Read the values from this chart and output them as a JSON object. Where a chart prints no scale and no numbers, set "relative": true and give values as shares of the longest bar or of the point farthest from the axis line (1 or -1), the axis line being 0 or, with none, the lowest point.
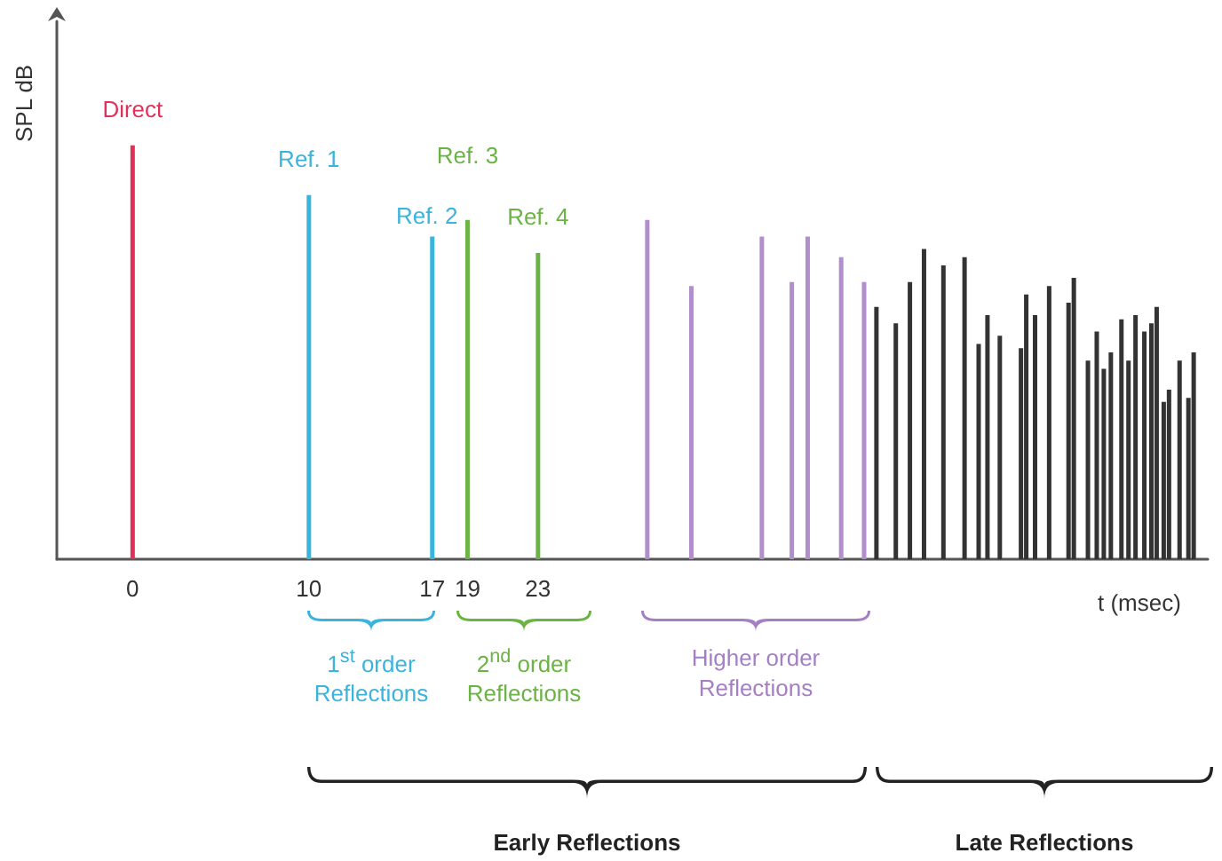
{
  "chart_data": {
    "type": "bar",
    "relative": true,
    "xlabel": "t (msec)",
    "ylabel": "SPL dB",
    "xlim": [
      -4.3,
      61
    ],
    "xticks": [
      0,
      10,
      17,
      19,
      23
    ],
    "legend": false,
    "grid": false,
    "series": [
      {
        "name": "Direct",
        "color": "#e0315a",
        "x": [
          0
        ],
        "values": [
          1
        ]
      },
      {
        "name": "Ref. 1",
        "color": "#3ab4dc",
        "x": [
          10
        ],
        "values": [
          0.88
        ]
      },
      {
        "name": "Ref. 2",
        "color": "#3ab4dc",
        "x": [
          17
        ],
        "values": [
          0.78
        ]
      },
      {
        "name": "Ref. 3",
        "color": "#6bb344",
        "x": [
          19
        ],
        "values": [
          0.82
        ]
      },
      {
        "name": "Ref. 4",
        "color": "#6bb344",
        "x": [
          23
        ],
        "values": [
          0.74
        ]
      },
      {
        "color": "#b08fcc",
        "x": [
          29.2,
          31.7,
          35.7,
          37.4,
          38.3,
          40.2,
          41.5
        ],
        "values": [
          0.82,
          0.66,
          0.78,
          0.67,
          0.78,
          0.73,
          0.67
        ]
      },
      {
        "color": "#333333",
        "x": [
          42.2,
          43.3,
          44.1,
          44.9,
          46.0,
          47.2,
          48.0,
          48.5,
          49.2,
          50.4,
          50.7,
          51.2,
          52.0,
          53.1,
          53.4,
          54.2,
          54.7,
          55.1,
          55.5,
          56.1,
          56.5,
          56.9,
          57.4,
          57.8,
          58.1,
          58.5,
          58.8,
          59.4,
          59.9,
          60.2
        ],
        "values": [
          0.61,
          0.57,
          0.67,
          0.75,
          0.71,
          0.73,
          0.52,
          0.59,
          0.54,
          0.51,
          0.64,
          0.59,
          0.66,
          0.62,
          0.68,
          0.48,
          0.55,
          0.46,
          0.5,
          0.58,
          0.48,
          0.59,
          0.55,
          0.57,
          0.61,
          0.38,
          0.41,
          0.48,
          0.39,
          0.5
        ]
      }
    ],
    "annotations": [
      "1$^{st}$ order Reflections",
      "2$^{nd}$ order Reflections",
      "Higher order Reflections",
      "Early Reflections",
      "Late Reflections"
    ]
  }
}
